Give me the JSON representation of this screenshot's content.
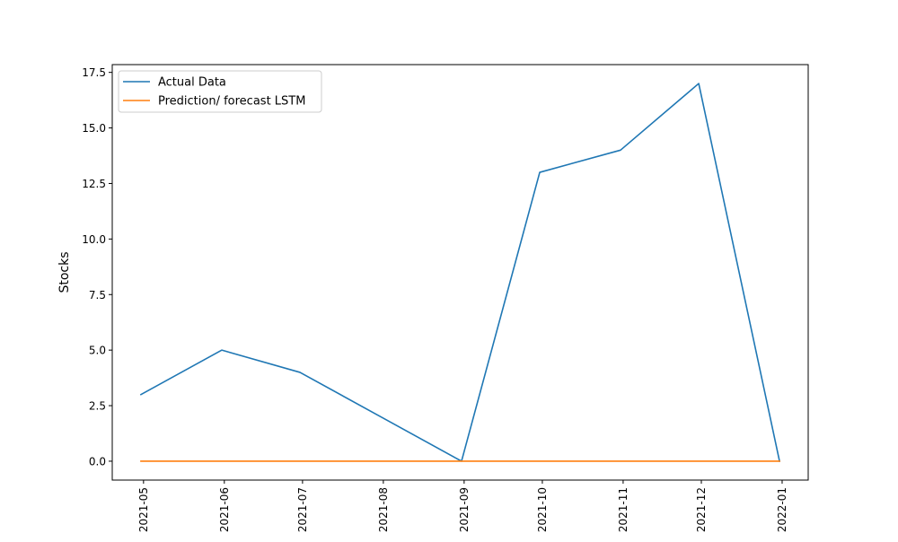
{
  "chart_data": {
    "type": "line",
    "title": "",
    "xlabel": "",
    "ylabel": "Stocks",
    "x_dates": [
      "2021-04-30",
      "2021-05-31",
      "2021-06-30",
      "2021-07-31",
      "2021-08-31",
      "2021-09-30",
      "2021-10-31",
      "2021-11-30",
      "2021-12-31"
    ],
    "x_ticks": [
      "2021-05-01",
      "2021-06-01",
      "2021-07-01",
      "2021-08-01",
      "2021-09-01",
      "2021-10-01",
      "2021-11-01",
      "2021-12-01",
      "2022-01-01"
    ],
    "x_tick_labels": [
      "2021-05",
      "2021-06",
      "2021-07",
      "2021-08",
      "2021-09",
      "2021-10",
      "2021-11",
      "2021-12",
      "2022-01"
    ],
    "y_ticks": [
      0.0,
      2.5,
      5.0,
      7.5,
      10.0,
      12.5,
      15.0,
      17.5
    ],
    "y_tick_labels": [
      "0.0",
      "2.5",
      "5.0",
      "7.5",
      "10.0",
      "12.5",
      "15.0",
      "17.5"
    ],
    "ylim": [
      -0.85,
      17.85
    ],
    "xlim": [
      "2021-04-19",
      "2022-01-11"
    ],
    "grid": false,
    "legend_position": "top-left",
    "series": [
      {
        "name": "Actual Data",
        "color": "#1f77b4",
        "values": [
          3,
          5,
          4,
          2,
          0,
          13,
          14,
          17,
          0
        ]
      },
      {
        "name": "Prediction/ forecast LSTM",
        "color": "#ff7f0e",
        "values": [
          0,
          0,
          0,
          0,
          0,
          0,
          0,
          0,
          0
        ]
      }
    ]
  }
}
